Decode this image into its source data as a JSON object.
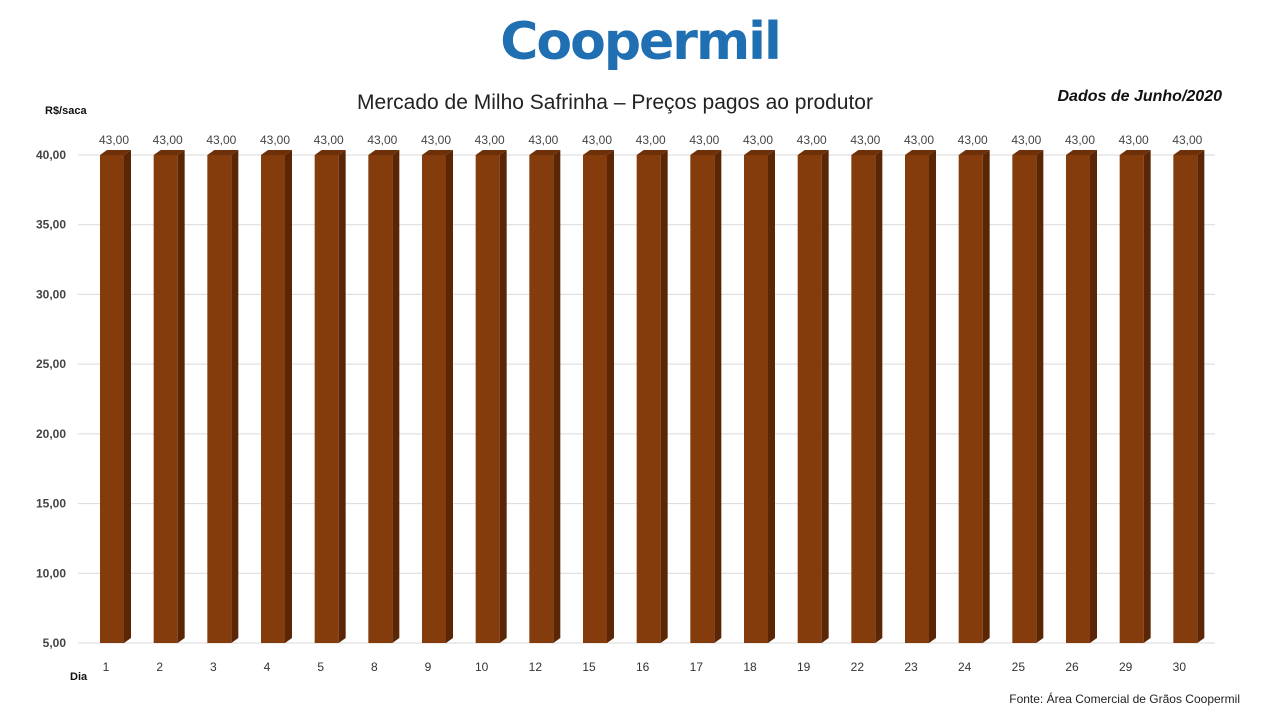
{
  "header": {
    "logo_text": "Coopermil",
    "period_note": "Dados de Junho/2020",
    "source_note": "Fonte: Área Comercial de Grãos Coopermil"
  },
  "colors": {
    "bar_front": "#843c0c",
    "bar_side": "#5a2606",
    "bar_top": "#6e3009",
    "logo": "#1f6fb2",
    "grid": "#d9d9d9"
  },
  "chart_data": {
    "type": "bar",
    "title": "Mercado de Milho Safrinha – Preços pagos ao produtor",
    "xlabel": "Dia",
    "ylabel": "R$/saca",
    "categories": [
      "1",
      "2",
      "3",
      "4",
      "5",
      "8",
      "9",
      "10",
      "12",
      "15",
      "16",
      "17",
      "18",
      "19",
      "22",
      "23",
      "24",
      "25",
      "26",
      "29",
      "30"
    ],
    "values": [
      43,
      43,
      43,
      43,
      43,
      43,
      43,
      43,
      43,
      43,
      43,
      43,
      43,
      43,
      43,
      43,
      43,
      43,
      43,
      43,
      43
    ],
    "data_labels": [
      "43,00",
      "43,00",
      "43,00",
      "43,00",
      "43,00",
      "43,00",
      "43,00",
      "43,00",
      "43,00",
      "43,00",
      "43,00",
      "43,00",
      "43,00",
      "43,00",
      "43,00",
      "43,00",
      "43,00",
      "43,00",
      "43,00",
      "43,00",
      "43,00"
    ],
    "yticks": [
      5,
      10,
      15,
      20,
      25,
      30,
      35,
      40
    ],
    "ytick_labels": [
      "5,00",
      "10,00",
      "15,00",
      "20,00",
      "25,00",
      "30,00",
      "35,00",
      "40,00"
    ],
    "ylim": [
      5,
      40
    ],
    "grid": true,
    "legend": "none"
  }
}
